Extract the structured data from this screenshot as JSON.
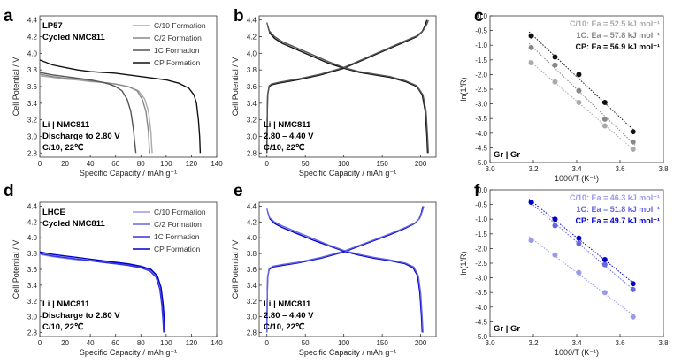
{
  "figure": {
    "colors": {
      "black": "#111111",
      "gray_dark": "#555555",
      "gray_mid": "#888888",
      "gray_light": "#aaaaaa",
      "blue_dark": "#0000cc",
      "blue_mid": "#3333dd",
      "blue_light": "#6666e0",
      "blue_lighter": "#9999ee"
    },
    "panels": {
      "a": {
        "label": "a",
        "info_lines": [
          "LP57",
          "Cycled NMC811"
        ],
        "condition_lines": [
          "Li | NMC811",
          "Discharge to 2.80 V",
          "C/10, 22℃"
        ]
      },
      "b": {
        "label": "b",
        "condition_lines": [
          "Li | NMC811",
          "2.80 – 4.40 V",
          "C/10, 22℃"
        ]
      },
      "c": {
        "label": "c",
        "cell_label": "Gr | Gr",
        "ea_lines": [
          "C/10: Ea = 52.5 kJ mol⁻¹",
          "1C: Ea = 57.8 kJ mol⁻¹",
          "CP: Ea = 56.9 kJ mol⁻¹"
        ]
      },
      "d": {
        "label": "d",
        "info_lines": [
          "LHCE",
          "Cycled NMC811"
        ],
        "condition_lines": [
          "Li | NMC811",
          "Discharge to 2.80 V",
          "C/10, 22℃"
        ]
      },
      "e": {
        "label": "e",
        "condition_lines": [
          "Li | NMC811",
          "2.80 – 4.40 V",
          "C/10, 22℃"
        ]
      },
      "f": {
        "label": "f",
        "cell_label": "Gr | Gr",
        "ea_lines": [
          "C/10: Ea = 46.3 kJ mol⁻¹",
          "1C: Ea = 51.8 kJ mol⁻¹",
          "CP: Ea = 49.7 kJ mol⁻¹"
        ]
      }
    }
  },
  "chart_data": [
    {
      "id": "a",
      "type": "line",
      "title": "",
      "xlabel": "Specific Capacity / mAh g⁻¹",
      "ylabel": "Cell Potential / V",
      "xlim": [
        0,
        140
      ],
      "ylim": [
        2.75,
        4.45
      ],
      "xticks": [
        0,
        20,
        40,
        60,
        80,
        100,
        120,
        140
      ],
      "yticks": [
        2.8,
        3.0,
        3.2,
        3.4,
        3.6,
        3.8,
        4.0,
        4.2,
        4.4
      ],
      "legend": [
        "C/10 Formation",
        "C/2 Formation",
        "1C Formation",
        "CP Formation"
      ],
      "series": [
        {
          "name": "C/10 Formation",
          "color_key": "gray_light",
          "x": [
            0,
            10,
            20,
            30,
            40,
            50,
            60,
            70,
            78,
            83,
            86,
            88,
            88.5,
            89
          ],
          "y": [
            3.73,
            3.71,
            3.69,
            3.68,
            3.66,
            3.65,
            3.63,
            3.6,
            3.55,
            3.45,
            3.3,
            3.05,
            2.9,
            2.8
          ]
        },
        {
          "name": "C/2 Formation",
          "color_key": "gray_mid",
          "x": [
            0,
            10,
            20,
            30,
            40,
            50,
            60,
            70,
            77,
            81,
            84,
            86,
            86.5,
            87
          ],
          "y": [
            3.75,
            3.72,
            3.7,
            3.69,
            3.67,
            3.65,
            3.63,
            3.6,
            3.55,
            3.45,
            3.3,
            3.05,
            2.9,
            2.8
          ]
        },
        {
          "name": "1C Formation",
          "color_key": "gray_dark",
          "x": [
            0,
            10,
            20,
            30,
            40,
            50,
            55,
            60,
            65,
            69,
            72,
            74,
            75,
            76
          ],
          "y": [
            3.77,
            3.74,
            3.72,
            3.7,
            3.68,
            3.65,
            3.63,
            3.6,
            3.55,
            3.45,
            3.3,
            3.1,
            2.95,
            2.8
          ]
        },
        {
          "name": "CP Formation",
          "color_key": "black",
          "x": [
            0,
            10,
            20,
            30,
            40,
            50,
            60,
            70,
            80,
            90,
            100,
            110,
            118,
            122,
            124,
            125.5,
            126.5,
            127
          ],
          "y": [
            3.92,
            3.86,
            3.83,
            3.8,
            3.78,
            3.77,
            3.76,
            3.74,
            3.72,
            3.7,
            3.68,
            3.64,
            3.58,
            3.5,
            3.4,
            3.2,
            3.0,
            2.8
          ]
        }
      ]
    },
    {
      "id": "b",
      "type": "line",
      "title": "",
      "xlabel": "Specific Capacity / mAh g⁻¹",
      "ylabel": "Cell Potential / V",
      "xlim": [
        -10,
        220
      ],
      "ylim": [
        2.75,
        4.45
      ],
      "xticks": [
        0,
        50,
        100,
        150,
        200
      ],
      "yticks": [
        2.8,
        3.0,
        3.2,
        3.4,
        3.6,
        3.8,
        4.0,
        4.2,
        4.4
      ],
      "series": [
        {
          "name": "charge 1",
          "color_key": "black",
          "x": [
            0,
            0.5,
            1,
            3,
            6,
            15,
            40,
            70,
            100,
            130,
            160,
            180,
            195,
            202,
            206,
            208
          ],
          "y": [
            2.8,
            3.2,
            3.5,
            3.6,
            3.62,
            3.64,
            3.68,
            3.74,
            3.82,
            3.94,
            4.06,
            4.14,
            4.2,
            4.26,
            4.34,
            4.4
          ]
        },
        {
          "name": "charge 2",
          "color_key": "gray_dark",
          "x": [
            0,
            0.5,
            1,
            3,
            6,
            15,
            40,
            70,
            100,
            130,
            160,
            180,
            195,
            203,
            208,
            210
          ],
          "y": [
            2.8,
            3.2,
            3.5,
            3.61,
            3.63,
            3.65,
            3.69,
            3.75,
            3.83,
            3.95,
            4.07,
            4.15,
            4.21,
            4.27,
            4.35,
            4.4
          ]
        },
        {
          "name": "discharge 1",
          "color_key": "black",
          "x": [
            1,
            4,
            10,
            20,
            40,
            60,
            80,
            100,
            120,
            140,
            160,
            180,
            195,
            202,
            206,
            208,
            209
          ],
          "y": [
            4.33,
            4.24,
            4.18,
            4.12,
            4.04,
            3.96,
            3.88,
            3.82,
            3.77,
            3.74,
            3.71,
            3.66,
            3.6,
            3.5,
            3.3,
            3.0,
            2.8
          ]
        },
        {
          "name": "discharge 2",
          "color_key": "gray_dark",
          "x": [
            0,
            3,
            10,
            20,
            40,
            60,
            80,
            100,
            120,
            140,
            160,
            180,
            195,
            203,
            207,
            209,
            210
          ],
          "y": [
            4.37,
            4.27,
            4.2,
            4.14,
            4.06,
            3.98,
            3.9,
            3.83,
            3.78,
            3.75,
            3.72,
            3.67,
            3.61,
            3.5,
            3.3,
            3.0,
            2.8
          ]
        }
      ]
    },
    {
      "id": "c",
      "type": "scatter",
      "title": "",
      "xlabel": "1000/T (K⁻¹)",
      "ylabel": "ln(1/R)",
      "xlim": [
        3.0,
        3.8
      ],
      "ylim": [
        -5.0,
        0.0
      ],
      "xticks": [
        3.0,
        3.2,
        3.4,
        3.6,
        3.8
      ],
      "yticks": [
        0.0,
        -0.5,
        -1.0,
        -1.5,
        -2.0,
        -2.5,
        -3.0,
        -3.5,
        -4.0,
        -4.5,
        -5.0
      ],
      "x": [
        3.19,
        3.3,
        3.41,
        3.53,
        3.66
      ],
      "series": [
        {
          "name": "C/10",
          "color_key": "gray_light",
          "values": [
            -1.6,
            -2.25,
            -2.95,
            -3.75,
            -4.55
          ]
        },
        {
          "name": "1C",
          "color_key": "gray_mid",
          "values": [
            -1.08,
            -1.68,
            -2.55,
            -3.52,
            -4.3
          ]
        },
        {
          "name": "CP",
          "color_key": "black",
          "values": [
            -0.68,
            -1.4,
            -2.0,
            -2.95,
            -3.95
          ]
        }
      ]
    },
    {
      "id": "d",
      "type": "line",
      "title": "",
      "xlabel": "Specific Capacity / mAh g⁻¹",
      "ylabel": "Cell Potential / V",
      "xlim": [
        0,
        140
      ],
      "ylim": [
        2.75,
        4.45
      ],
      "xticks": [
        0,
        20,
        40,
        60,
        80,
        100,
        120,
        140
      ],
      "yticks": [
        2.8,
        3.0,
        3.2,
        3.4,
        3.6,
        3.8,
        4.0,
        4.2,
        4.4
      ],
      "legend": [
        "C/10 Formation",
        "C/2 Formation",
        "1C Formation",
        "CP Formation"
      ],
      "series": [
        {
          "name": "C/10 Formation",
          "color_key": "blue_lighter",
          "x": [
            0,
            10,
            20,
            30,
            40,
            50,
            60,
            70,
            80,
            88,
            93,
            96,
            97.5,
            98.5,
            99
          ],
          "y": [
            3.79,
            3.76,
            3.74,
            3.72,
            3.71,
            3.69,
            3.67,
            3.65,
            3.62,
            3.58,
            3.5,
            3.35,
            3.15,
            2.95,
            2.8
          ]
        },
        {
          "name": "C/2 Formation",
          "color_key": "blue_light",
          "x": [
            0,
            10,
            20,
            30,
            40,
            50,
            60,
            70,
            80,
            88,
            93,
            96,
            97.5,
            98.5,
            99
          ],
          "y": [
            3.8,
            3.77,
            3.75,
            3.73,
            3.71,
            3.7,
            3.68,
            3.66,
            3.63,
            3.59,
            3.51,
            3.36,
            3.16,
            2.96,
            2.8
          ]
        },
        {
          "name": "1C Formation",
          "color_key": "blue_mid",
          "x": [
            0,
            10,
            20,
            30,
            40,
            50,
            60,
            70,
            80,
            87,
            92,
            95,
            96.5,
            97.5,
            98
          ],
          "y": [
            3.8,
            3.77,
            3.75,
            3.73,
            3.71,
            3.69,
            3.67,
            3.65,
            3.62,
            3.58,
            3.5,
            3.35,
            3.15,
            2.95,
            2.8
          ]
        },
        {
          "name": "CP Formation",
          "color_key": "blue_dark",
          "x": [
            0,
            10,
            20,
            30,
            40,
            50,
            60,
            70,
            80,
            88,
            93,
            96,
            97.5,
            98.5,
            99
          ],
          "y": [
            3.82,
            3.79,
            3.77,
            3.75,
            3.73,
            3.71,
            3.69,
            3.67,
            3.64,
            3.6,
            3.52,
            3.37,
            3.17,
            2.97,
            2.8
          ]
        }
      ]
    },
    {
      "id": "e",
      "type": "line",
      "title": "",
      "xlabel": "Specific Capacity / mAh g⁻¹",
      "ylabel": "Cell Potential / V",
      "xlim": [
        -10,
        220
      ],
      "ylim": [
        2.75,
        4.45
      ],
      "xticks": [
        0,
        50,
        100,
        150,
        200
      ],
      "yticks": [
        2.8,
        3.0,
        3.2,
        3.4,
        3.6,
        3.8,
        4.0,
        4.2,
        4.4
      ],
      "series": [
        {
          "name": "charge 1",
          "color_key": "blue_dark",
          "x": [
            0,
            0.5,
            1,
            3,
            8,
            20,
            40,
            70,
            100,
            130,
            160,
            180,
            192,
            198,
            201,
            203
          ],
          "y": [
            2.8,
            3.2,
            3.5,
            3.6,
            3.63,
            3.65,
            3.68,
            3.74,
            3.82,
            3.93,
            4.04,
            4.12,
            4.18,
            4.24,
            4.32,
            4.4
          ]
        },
        {
          "name": "charge 2",
          "color_key": "blue_light",
          "x": [
            0,
            0.5,
            1,
            3,
            8,
            20,
            40,
            70,
            100,
            130,
            160,
            180,
            193,
            199,
            202,
            204
          ],
          "y": [
            2.8,
            3.2,
            3.5,
            3.61,
            3.64,
            3.66,
            3.69,
            3.75,
            3.83,
            3.94,
            4.05,
            4.13,
            4.19,
            4.25,
            4.33,
            4.4
          ]
        },
        {
          "name": "discharge 1",
          "color_key": "blue_dark",
          "x": [
            1,
            4,
            10,
            20,
            40,
            60,
            80,
            100,
            120,
            140,
            160,
            180,
            190,
            196,
            199,
            201,
            202
          ],
          "y": [
            4.33,
            4.24,
            4.18,
            4.13,
            4.05,
            3.97,
            3.9,
            3.83,
            3.78,
            3.74,
            3.71,
            3.67,
            3.62,
            3.52,
            3.3,
            3.0,
            2.8
          ]
        },
        {
          "name": "discharge 2",
          "color_key": "blue_light",
          "x": [
            0,
            3,
            10,
            20,
            40,
            60,
            80,
            100,
            120,
            140,
            160,
            180,
            191,
            197,
            200,
            202,
            203
          ],
          "y": [
            4.37,
            4.26,
            4.2,
            4.15,
            4.07,
            3.99,
            3.91,
            3.84,
            3.79,
            3.75,
            3.72,
            3.68,
            3.63,
            3.52,
            3.3,
            3.0,
            2.8
          ]
        }
      ]
    },
    {
      "id": "f",
      "type": "scatter",
      "title": "",
      "xlabel": "1000/T (K⁻¹)",
      "ylabel": "ln(1/R)",
      "xlim": [
        3.0,
        3.8
      ],
      "ylim": [
        -5.0,
        0.0
      ],
      "xticks": [
        3.0,
        3.2,
        3.4,
        3.6,
        3.8
      ],
      "yticks": [
        0.0,
        -0.5,
        -1.0,
        -1.5,
        -2.0,
        -2.5,
        -3.0,
        -3.5,
        -4.0,
        -4.5,
        -5.0
      ],
      "x": [
        3.19,
        3.3,
        3.41,
        3.53,
        3.66
      ],
      "series": [
        {
          "name": "C/10",
          "color_key": "blue_lighter",
          "values": [
            -1.72,
            -2.22,
            -2.82,
            -3.5,
            -4.33
          ]
        },
        {
          "name": "1C",
          "color_key": "blue_light",
          "values": [
            -0.42,
            -1.22,
            -1.83,
            -2.55,
            -3.4
          ]
        },
        {
          "name": "CP",
          "color_key": "blue_dark",
          "values": [
            -0.42,
            -1.0,
            -1.65,
            -2.38,
            -3.2
          ]
        }
      ]
    }
  ]
}
